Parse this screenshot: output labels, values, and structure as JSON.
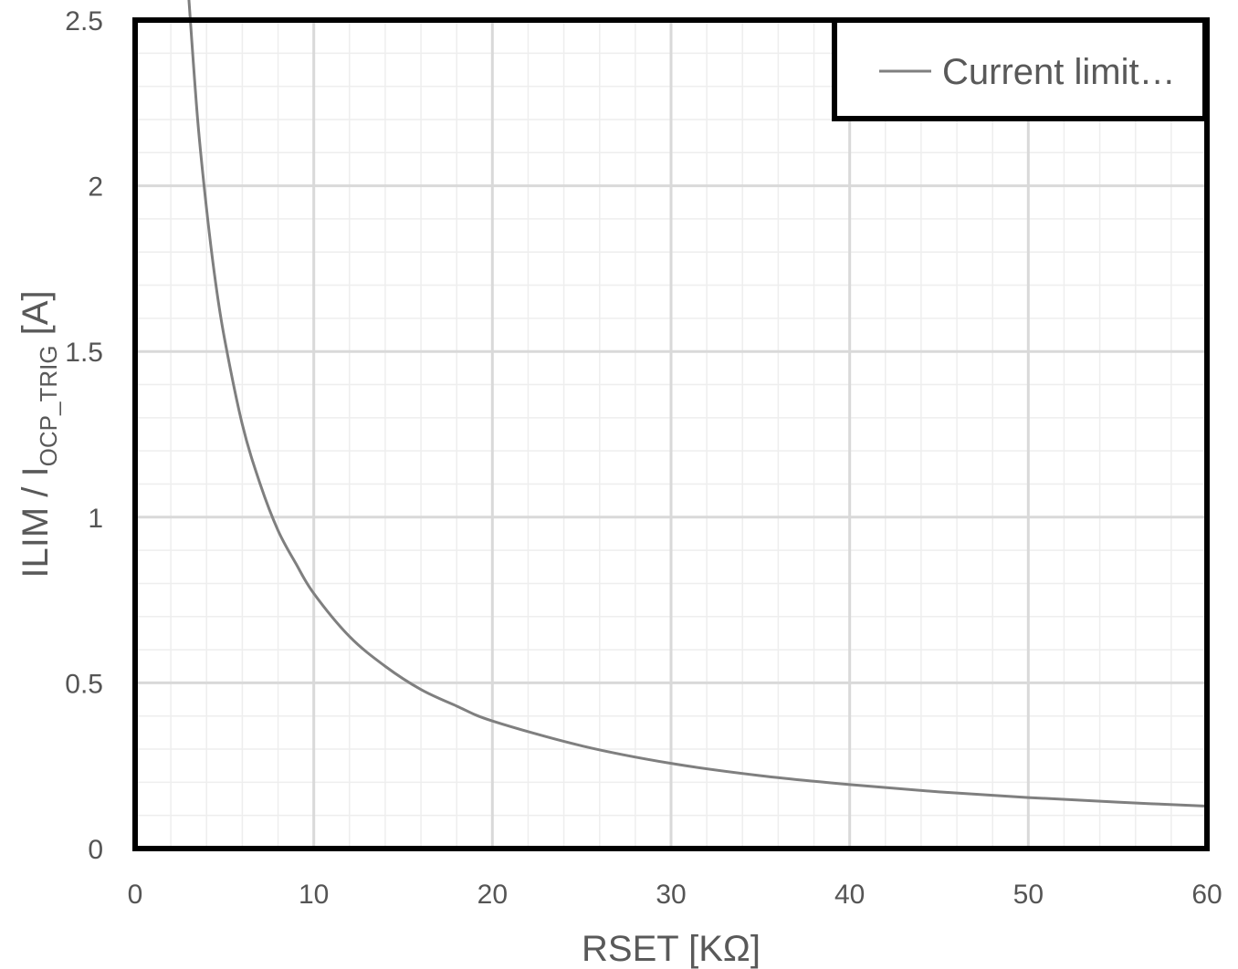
{
  "chart_data": {
    "type": "line",
    "xlabel": "RSET [KΩ]",
    "ylabel": {
      "main": "ILIM / I",
      "subscript": "OCP_TRIG",
      "suffix": " [A]"
    },
    "xlim": [
      0,
      60
    ],
    "ylim": [
      0,
      2.5
    ],
    "x_ticks": [
      "0",
      "10",
      "20",
      "30",
      "40",
      "50",
      "60"
    ],
    "y_ticks": [
      "0",
      "0.5",
      "1",
      "1.5",
      "2",
      "2.5"
    ],
    "grid": true,
    "legend_position": "top-right",
    "series": [
      {
        "name": "Current limit…",
        "color": "#7f7f7f",
        "x": [
          3,
          3.5,
          4,
          4.5,
          5,
          6,
          7,
          8,
          9,
          10,
          12,
          14,
          16,
          18,
          20,
          25,
          30,
          35,
          40,
          45,
          50,
          55,
          60
        ],
        "y": [
          2.57,
          2.2,
          1.93,
          1.71,
          1.54,
          1.28,
          1.1,
          0.96,
          0.86,
          0.77,
          0.64,
          0.55,
          0.48,
          0.43,
          0.385,
          0.31,
          0.257,
          0.22,
          0.193,
          0.171,
          0.154,
          0.14,
          0.128
        ]
      }
    ]
  }
}
